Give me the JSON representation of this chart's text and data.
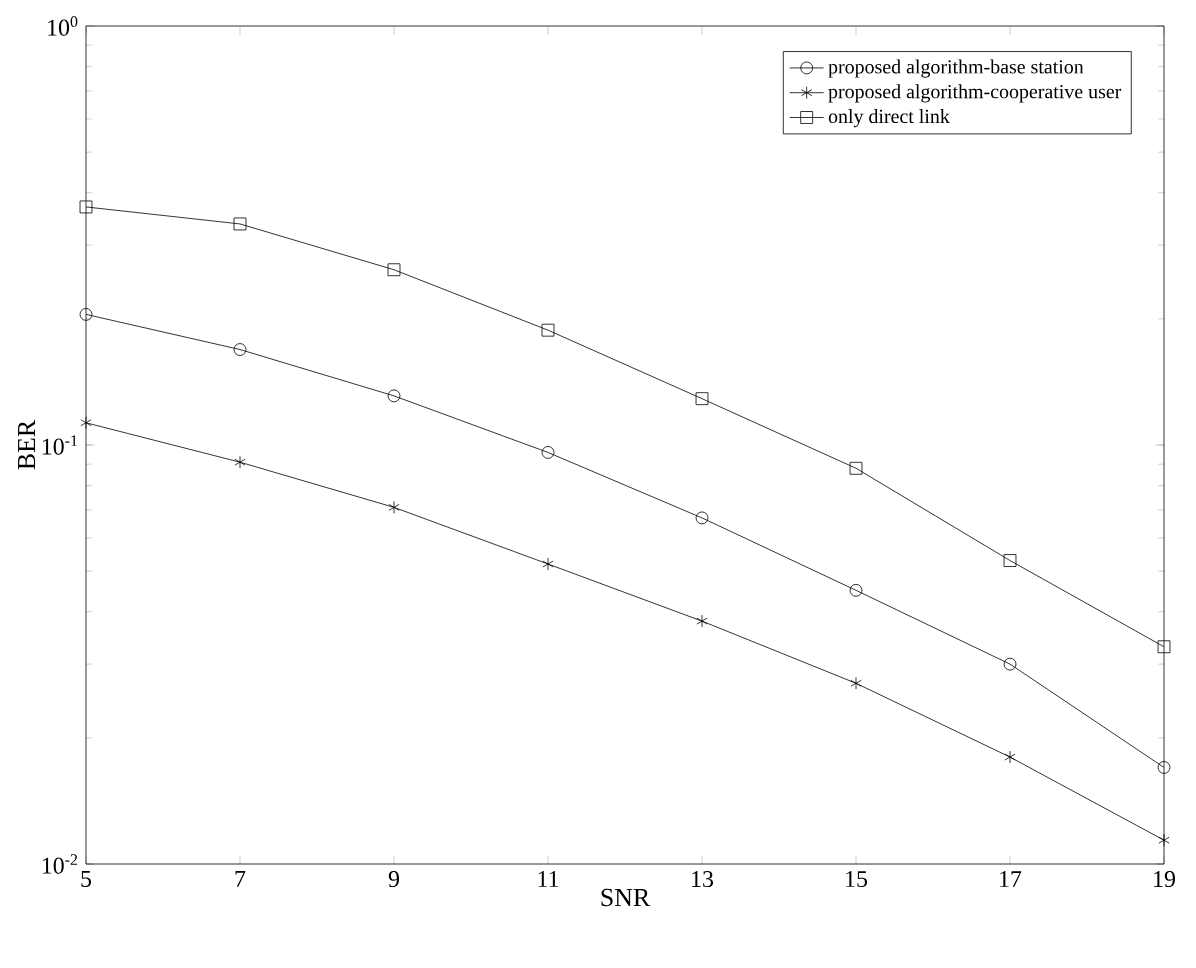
{
  "chart_data": {
    "type": "line",
    "xlabel": "SNR",
    "ylabel": "BER",
    "x": [
      5,
      7,
      9,
      11,
      13,
      15,
      17,
      19
    ],
    "series": [
      {
        "name": "proposed algorithm-base station",
        "color": "#000000",
        "marker": "circle",
        "values": [
          0.205,
          0.169,
          0.131,
          0.096,
          0.067,
          0.045,
          0.03,
          0.017
        ]
      },
      {
        "name": "proposed algorithm-cooperative user",
        "color": "#000000",
        "marker": "cross",
        "values": [
          0.113,
          0.091,
          0.071,
          0.052,
          0.038,
          0.027,
          0.018,
          0.0114
        ]
      },
      {
        "name": "only direct link",
        "color": "#000000",
        "marker": "square",
        "values": [
          0.37,
          0.337,
          0.262,
          0.188,
          0.129,
          0.088,
          0.053,
          0.033
        ]
      }
    ],
    "log": "y",
    "xlim": [
      5,
      19
    ],
    "ylim": [
      0.01,
      1
    ],
    "xticks": [
      5,
      7,
      9,
      11,
      13,
      15,
      17,
      19
    ],
    "yticks": [
      {
        "value": 0.01,
        "label": "10$^{-2}$"
      },
      {
        "value": 0.1,
        "label": "10$^{-1}$"
      },
      {
        "value": 1,
        "label": "10$^{0}$"
      }
    ],
    "legend": "top right",
    "line_style": "solid",
    "grid": false
  }
}
